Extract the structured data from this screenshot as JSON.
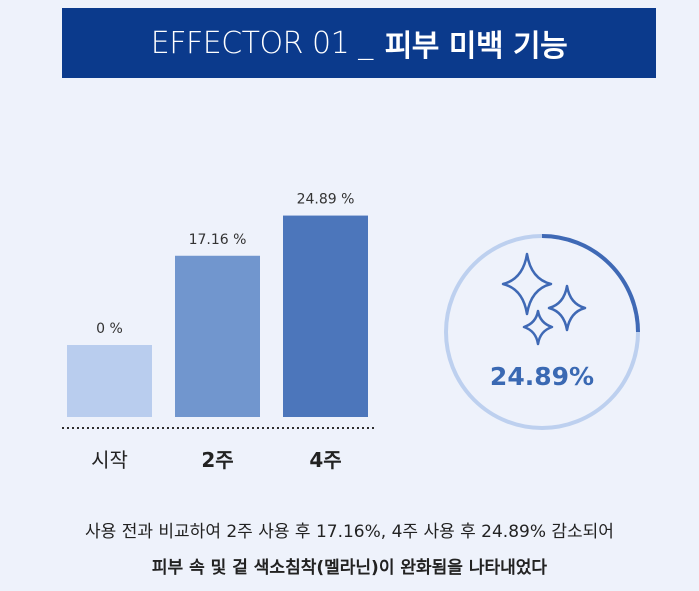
{
  "header": {
    "lead": "EFFECTOR 01 _",
    "tail": "피부 미백 기능"
  },
  "chart_data": {
    "type": "bar",
    "categories": [
      "시작",
      "2주",
      "4주"
    ],
    "category_bold": [
      false,
      true,
      true
    ],
    "values": [
      0,
      17.16,
      24.89
    ],
    "value_labels": [
      "0 %",
      "17.16 %",
      "24.89 %"
    ],
    "colors": [
      "#b9cdee",
      "#7196ce",
      "#4c76bb"
    ],
    "baseline_style": "dotted",
    "xlabel": "",
    "ylabel": ""
  },
  "highlight": {
    "value": "24.89%",
    "icon": "sparkle-icon",
    "ring_colors": [
      "#3f69b5",
      "#bdd0ef"
    ]
  },
  "caption": {
    "line1": "사용 전과 비교하여 2주 사용 후 17.16%, 4주 사용 후 24.89% 감소되어",
    "line2": "피부 속 및 겉 색소침착(멜라닌)이 완화됨을 나타내었다"
  }
}
